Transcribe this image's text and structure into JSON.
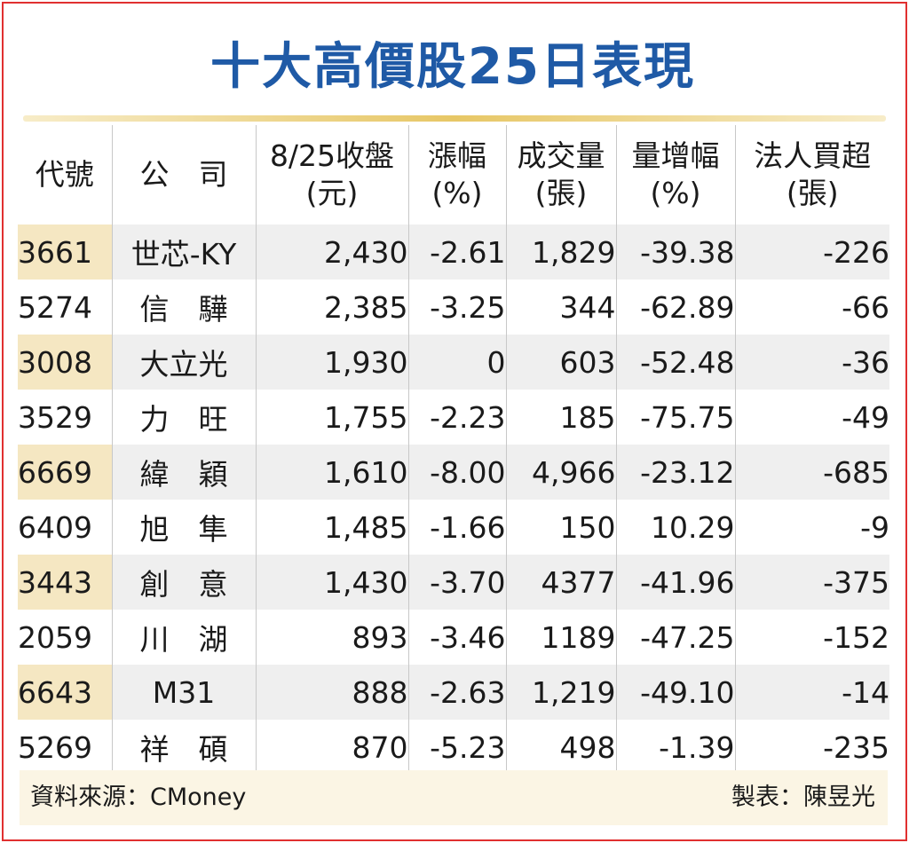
{
  "title": "十大高價股25日表現",
  "chart_data": {
    "type": "table",
    "columns": [
      {
        "line1": "代號",
        "line2": ""
      },
      {
        "line1": "公　司",
        "line2": ""
      },
      {
        "line1": "8/25收盤",
        "line2": "(元)"
      },
      {
        "line1": "漲幅",
        "line2": "(%)"
      },
      {
        "line1": "成交量",
        "line2": "(張)"
      },
      {
        "line1": "量增幅",
        "line2": "(%)"
      },
      {
        "line1": "法人買超",
        "line2": "(張)"
      }
    ],
    "rows": [
      [
        "3661",
        "世芯-KY",
        "2,430",
        "-2.61",
        "1,829",
        "-39.38",
        "-226"
      ],
      [
        "5274",
        "信　驊",
        "2,385",
        "-3.25",
        "344",
        "-62.89",
        "-66"
      ],
      [
        "3008",
        "大立光",
        "1,930",
        "0",
        "603",
        "-52.48",
        "-36"
      ],
      [
        "3529",
        "力　旺",
        "1,755",
        "-2.23",
        "185",
        "-75.75",
        "-49"
      ],
      [
        "6669",
        "緯　穎",
        "1,610",
        "-8.00",
        "4,966",
        "-23.12",
        "-685"
      ],
      [
        "6409",
        "旭　隼",
        "1,485",
        "-1.66",
        "150",
        "10.29",
        "-9"
      ],
      [
        "3443",
        "創　意",
        "1,430",
        "-3.70",
        "4377",
        "-41.96",
        "-375"
      ],
      [
        "2059",
        "川　湖",
        "893",
        "-3.46",
        "1189",
        "-47.25",
        "-152"
      ],
      [
        "6643",
        "M31",
        "888",
        "-2.63",
        "1,219",
        "-49.10",
        "-14"
      ],
      [
        "5269",
        "祥　碩",
        "870",
        "-5.23",
        "498",
        "-1.39",
        "-235"
      ]
    ]
  },
  "footer": {
    "source": "資料來源：CMoney",
    "maker": "製表：陳昱光"
  },
  "colors": {
    "title": "#1f5aa6",
    "frame": "#e03030",
    "row_shade": "#efefef",
    "code_shade": "#f5e7c2",
    "rule": "#e7c766"
  }
}
